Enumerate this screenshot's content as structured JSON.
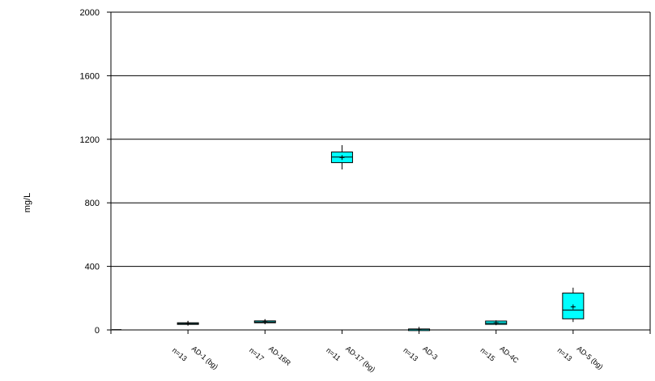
{
  "chart_data": {
    "type": "box",
    "title": "",
    "xlabel": "",
    "ylabel": "mg/L",
    "ylim": [
      0,
      2000
    ],
    "yticks": [
      0,
      400,
      800,
      1200,
      1600,
      2000
    ],
    "grid": true,
    "colors": {
      "box_fill": "#00FFFF",
      "axis": "#000000",
      "grid": "#000000"
    },
    "categories": [
      {
        "name": "AD-1 (bg)",
        "n": "n=13",
        "min": 30,
        "q1": 36,
        "median": 40,
        "q3": 45,
        "max": 55,
        "mean": 42
      },
      {
        "name": "AD-16R",
        "n": "n=17",
        "min": 38,
        "q1": 45,
        "median": 50,
        "q3": 57,
        "max": 68,
        "mean": 51
      },
      {
        "name": "AD-17 (bg)",
        "n": "n=11",
        "min": 1010,
        "q1": 1053,
        "median": 1088,
        "q3": 1120,
        "max": 1163,
        "mean": 1085
      },
      {
        "name": "AD-3",
        "n": "n=13",
        "min": 0,
        "q1": 2,
        "median": 4,
        "q3": 6,
        "max": 9,
        "mean": 4
      },
      {
        "name": "AD-4C",
        "n": "n=15",
        "min": 32,
        "q1": 35,
        "median": 42,
        "q3": 56,
        "max": 59,
        "mean": 45
      },
      {
        "name": "AD-5 (bg)",
        "n": "n=13",
        "min": 50,
        "q1": 70,
        "median": 125,
        "q3": 232,
        "max": 266,
        "mean": 145
      }
    ]
  }
}
